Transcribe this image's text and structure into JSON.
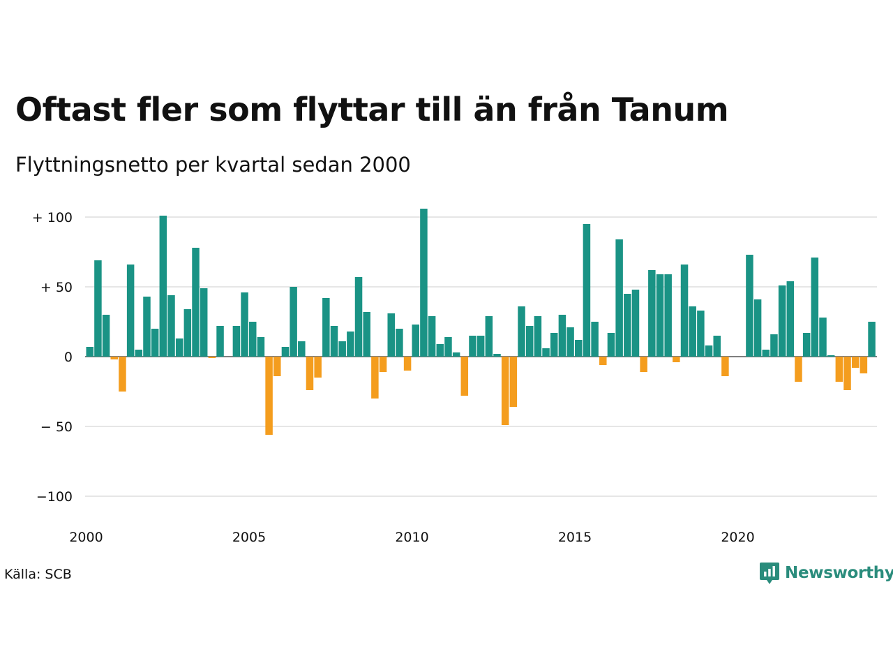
{
  "title": "Oftast fler som flyttar till än från Tanum",
  "subtitle": "Flyttningsnetto per kvartal sedan 2000",
  "source": "Källa: SCB",
  "brand": {
    "name": "Newsworthy",
    "icon": "newsworthy-logo-icon"
  },
  "colors": {
    "positive": "#1a9385",
    "negative": "#f49d1e",
    "grid": "#dddddd",
    "axis": "#333333"
  },
  "chart_data": {
    "type": "bar",
    "title": "Oftast fler som flyttar till än från Tanum",
    "subtitle": "Flyttningsnetto per kvartal sedan 2000",
    "x_start": "2000 Q1",
    "x_ticks": [
      "2000",
      "2005",
      "2010",
      "2015",
      "2020"
    ],
    "y_ticks": [
      {
        "value": 100,
        "label": "+ 100"
      },
      {
        "value": 50,
        "label": "+  50"
      },
      {
        "value": 0,
        "label": "0"
      },
      {
        "value": -50,
        "label": "− 50"
      },
      {
        "value": -100,
        "label": "−100"
      }
    ],
    "ylim": [
      -100,
      100
    ],
    "grid": true,
    "values": [
      7,
      69,
      30,
      -2,
      -25,
      66,
      5,
      43,
      20,
      101,
      44,
      13,
      34,
      78,
      49,
      -1,
      22,
      0,
      22,
      46,
      25,
      14,
      -56,
      -14,
      7,
      50,
      11,
      -24,
      -15,
      42,
      22,
      11,
      18,
      57,
      32,
      -30,
      -11,
      31,
      20,
      -10,
      23,
      106,
      29,
      9,
      14,
      3,
      -28,
      15,
      15,
      29,
      2,
      -49,
      -36,
      36,
      22,
      29,
      6,
      17,
      30,
      21,
      12,
      95,
      25,
      -6,
      17,
      84,
      45,
      48,
      -11,
      62,
      59,
      59,
      -4,
      66,
      36,
      33,
      8,
      15,
      -14,
      0,
      0,
      73,
      41,
      5,
      16,
      51,
      54,
      -18,
      17,
      71,
      28,
      1,
      -18,
      -24,
      -8,
      -12,
      25
    ]
  }
}
